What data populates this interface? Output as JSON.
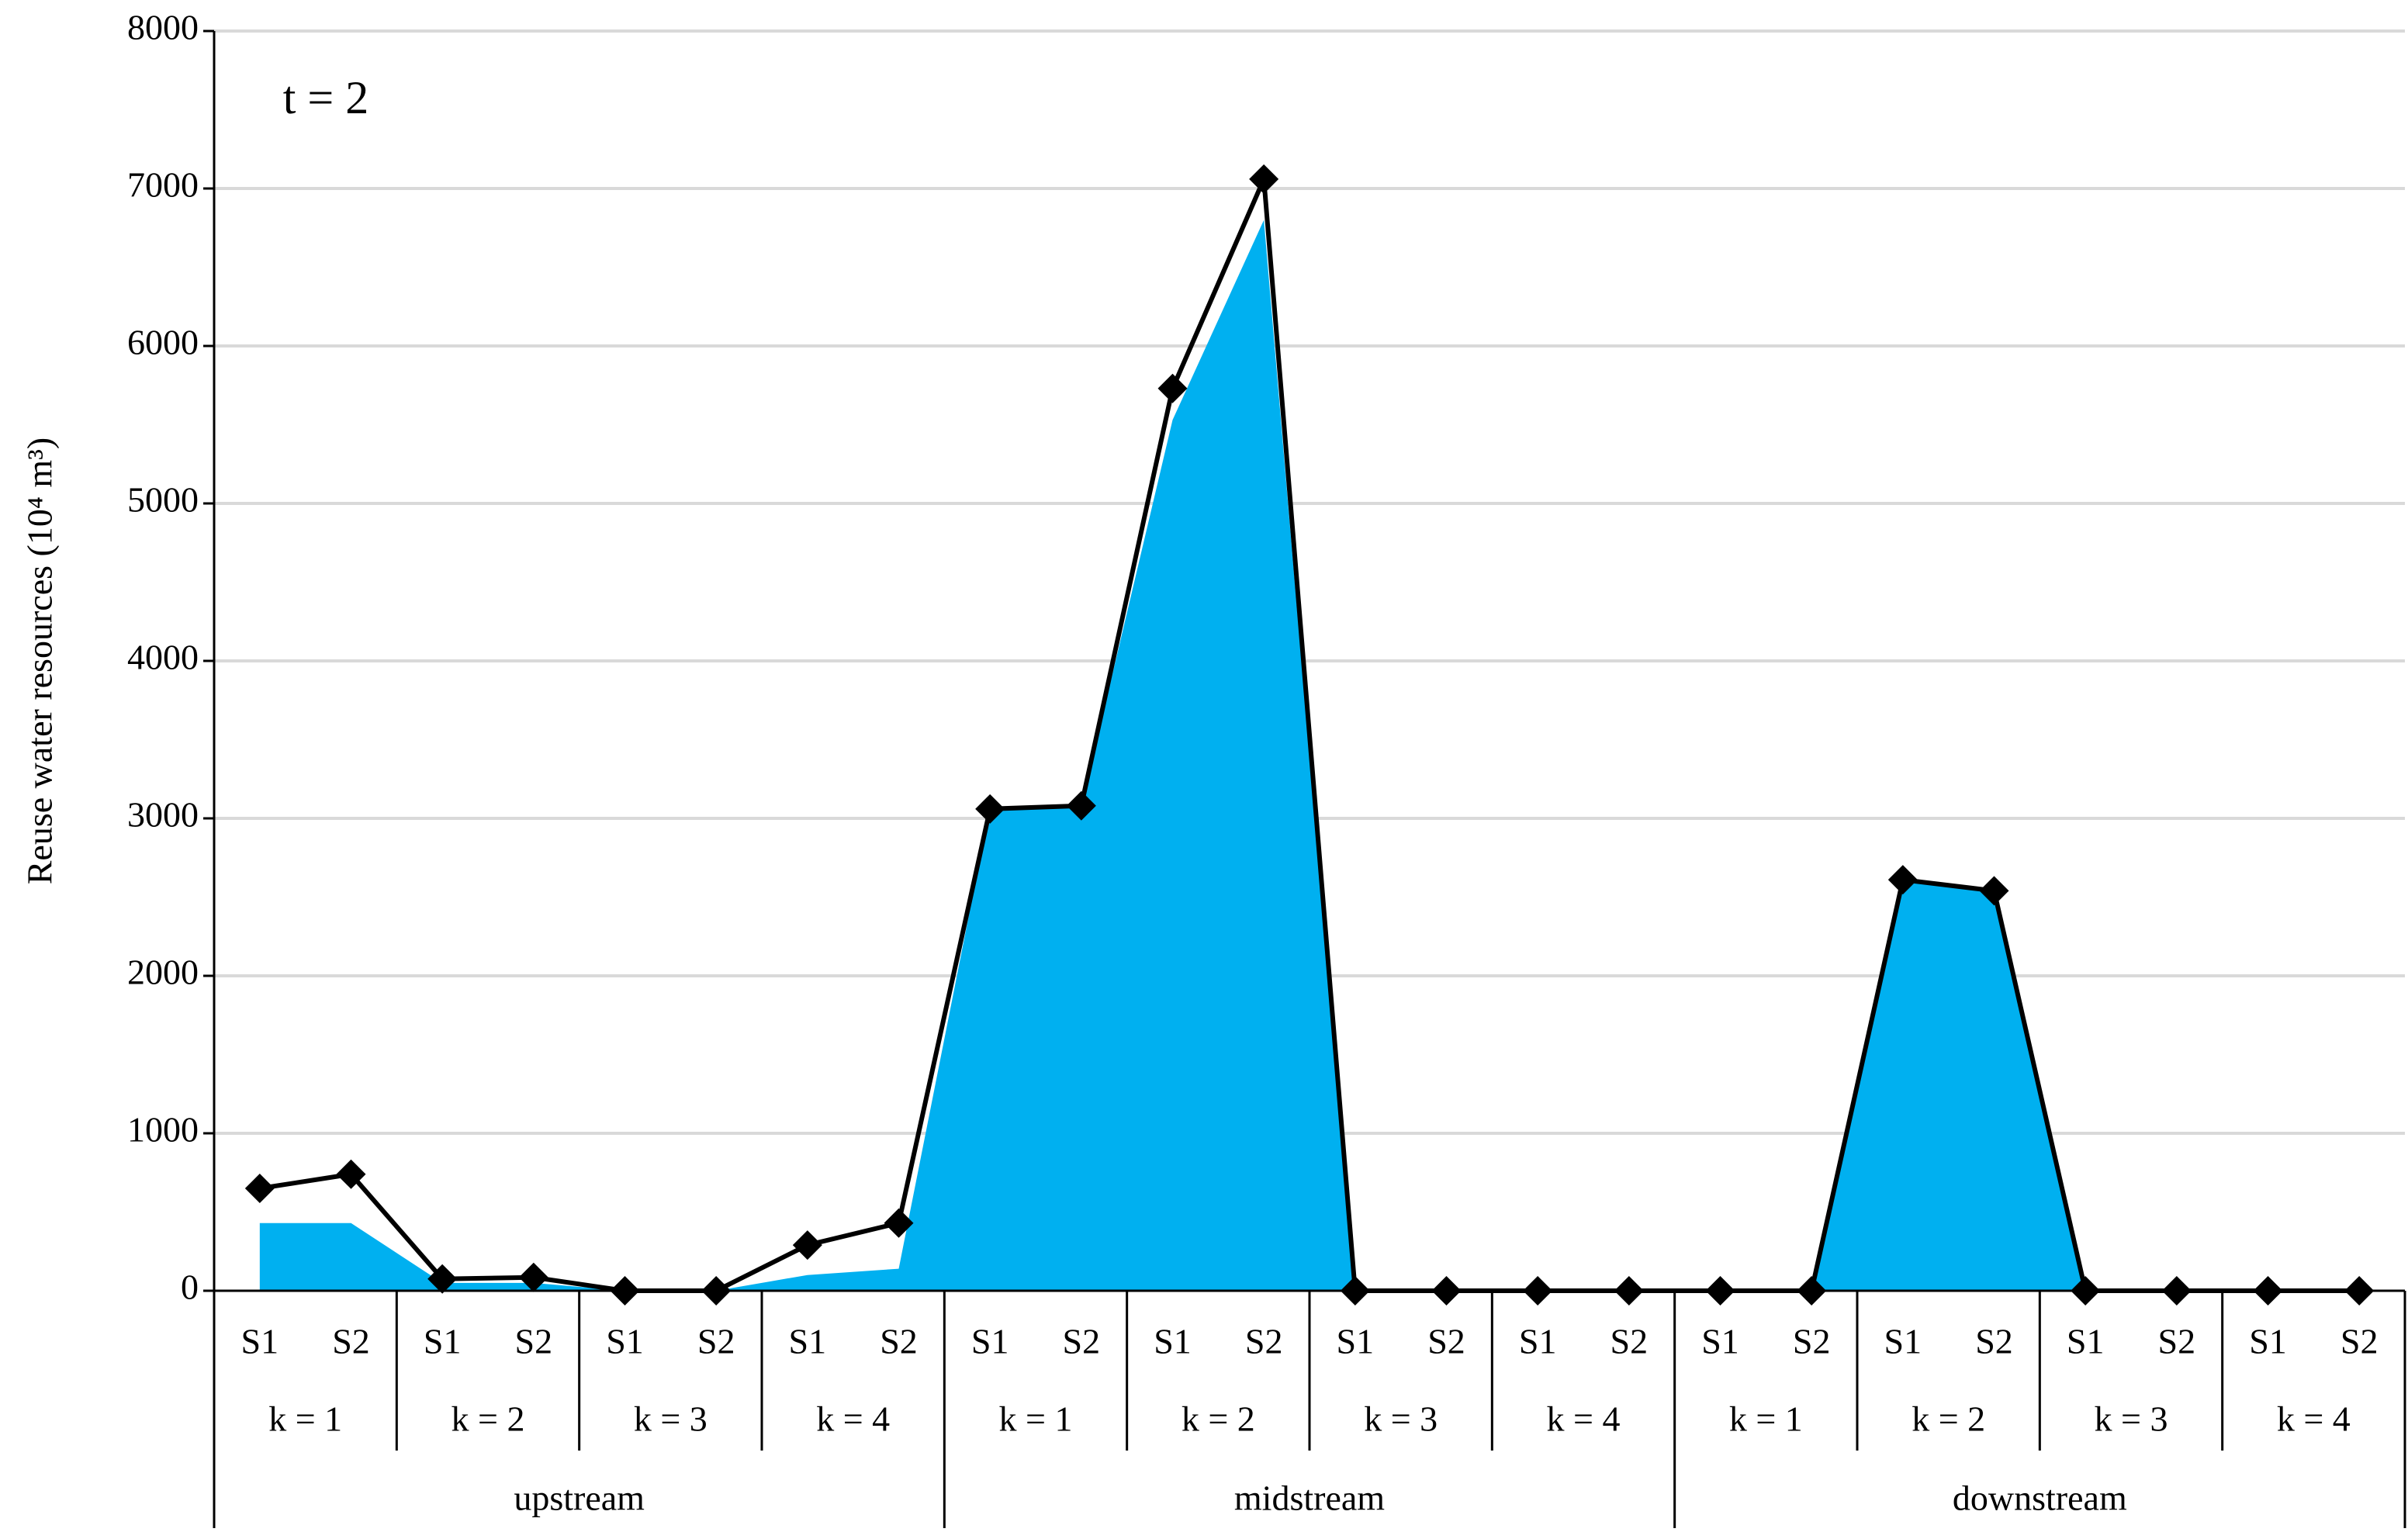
{
  "chart_data": {
    "type": "area",
    "y_label": "Reuse water resources (10⁴ m³)",
    "annotation": "t = 2",
    "categories": [
      "S1",
      "S2",
      "S1",
      "S2",
      "S1",
      "S2",
      "S1",
      "S2",
      "S1",
      "S2",
      "S1",
      "S2",
      "S1",
      "S2",
      "S1",
      "S2",
      "S1",
      "S2",
      "S1",
      "S2",
      "S1",
      "S2",
      "S1",
      "S2"
    ],
    "groups": [
      "k = 1",
      "k = 2",
      "k = 3",
      "k = 4",
      "k = 1",
      "k = 2",
      "k = 3",
      "k = 4",
      "k = 1",
      "k = 2",
      "k = 3",
      "k = 4"
    ],
    "regions": [
      "upstream",
      "midstream",
      "downstream"
    ],
    "series": [
      {
        "kind": "area",
        "color": "#00b0f0",
        "values": [
          430,
          430,
          50,
          50,
          0,
          0,
          100,
          140,
          3060,
          3080,
          5530,
          6800,
          0,
          0,
          0,
          0,
          0,
          0,
          2610,
          2540,
          0,
          0,
          0,
          0
        ]
      },
      {
        "kind": "line",
        "marker": "diamond",
        "color": "#000000",
        "values": [
          650,
          740,
          75,
          85,
          0,
          0,
          290,
          430,
          3060,
          3080,
          5730,
          7060,
          0,
          0,
          0,
          0,
          0,
          0,
          2610,
          2540,
          0,
          0,
          0,
          0
        ]
      }
    ],
    "ylim": [
      0,
      8000
    ],
    "yticks": [
      0,
      1000,
      2000,
      3000,
      4000,
      5000,
      6000,
      7000,
      8000
    ],
    "grid": true
  }
}
